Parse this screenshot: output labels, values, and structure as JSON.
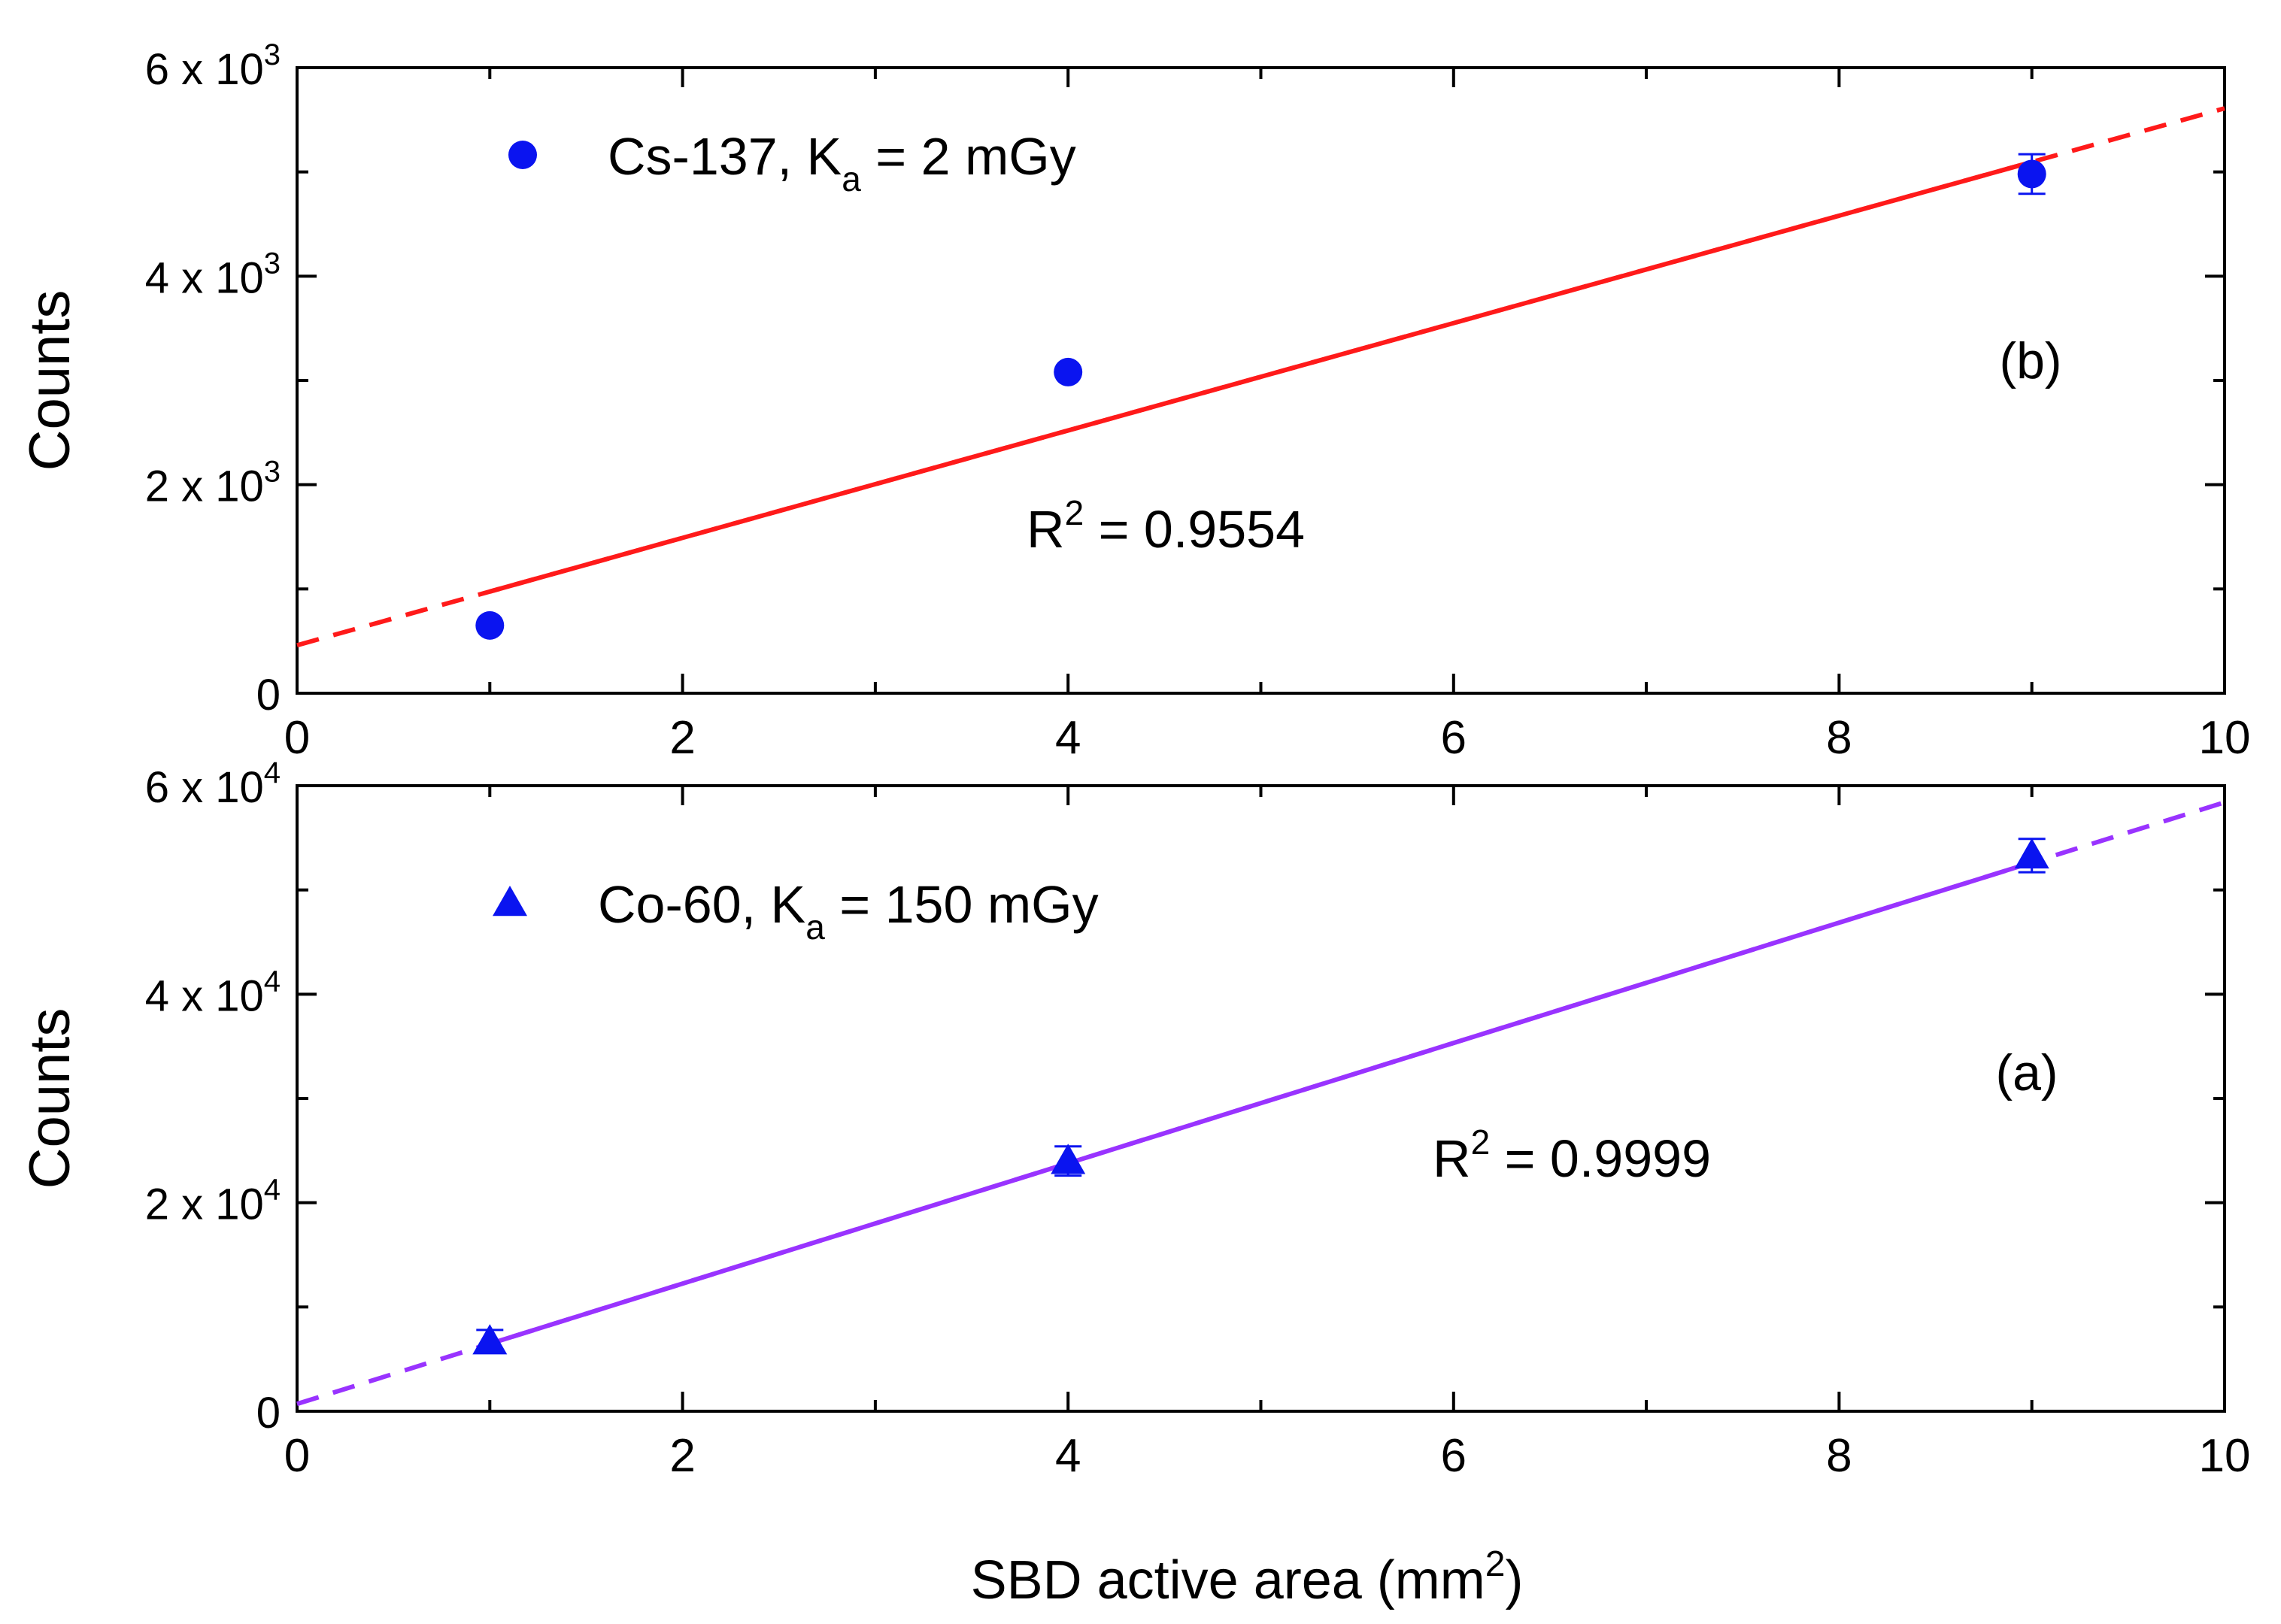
{
  "figure": {
    "shared_xlabel": "SBD active area (mm",
    "shared_xlabel_sup": "2",
    "shared_xlabel_end": ")"
  },
  "colors": {
    "marker": "#0a14f0",
    "fit_top": "#ff1a1a",
    "fit_bottom": "#9933ff",
    "axis": "#000000"
  },
  "chart_data": [
    {
      "id": "top",
      "type": "scatter",
      "panel_label": "(b)",
      "ylabel": "Counts",
      "xlim": [
        0,
        10
      ],
      "ylim": [
        0,
        6000
      ],
      "x_ticks": [
        0,
        2,
        4,
        6,
        8,
        10
      ],
      "x_tick_labels": [
        "0",
        "2",
        "4",
        "6",
        "8",
        "10"
      ],
      "y_ticks": [
        0,
        2000,
        4000,
        6000
      ],
      "y_tick_labels": [
        {
          "mant": "0",
          "exp": ""
        },
        {
          "mant": "2 x 10",
          "exp": "3"
        },
        {
          "mant": "4 x 10",
          "exp": "3"
        },
        {
          "mant": "6 x 10",
          "exp": "3"
        }
      ],
      "marker": "circle",
      "legend": {
        "text": "Cs-137, K",
        "sub": "a",
        "rest": " = 2 mGy"
      },
      "series": [
        {
          "name": "Cs-137, Ka = 2 mGy",
          "x": [
            1,
            4,
            9
          ],
          "y": [
            650,
            3080,
            4980
          ],
          "yerr": [
            0,
            0,
            190
          ]
        }
      ],
      "fit": {
        "slope": 515,
        "intercept": 460,
        "solid_range": [
          1,
          9
        ],
        "dashed_range": [
          0,
          10
        ]
      },
      "annotation": {
        "text": "R",
        "sup": "2",
        "rest": " = 0.9554"
      }
    },
    {
      "id": "bottom",
      "type": "scatter",
      "panel_label": "(a)",
      "ylabel": "Counts",
      "xlim": [
        0,
        10
      ],
      "ylim": [
        0,
        60000
      ],
      "x_ticks": [
        0,
        2,
        4,
        6,
        8,
        10
      ],
      "x_tick_labels": [
        "0",
        "2",
        "4",
        "6",
        "8",
        "10"
      ],
      "y_ticks": [
        0,
        20000,
        40000,
        60000
      ],
      "y_tick_labels": [
        {
          "mant": "0",
          "exp": ""
        },
        {
          "mant": "2 x 10",
          "exp": "4"
        },
        {
          "mant": "4 x 10",
          "exp": "4"
        },
        {
          "mant": "6 x 10",
          "exp": "4"
        }
      ],
      "marker": "triangle",
      "legend": {
        "text": "Co-60, K",
        "sub": "a",
        "rest": " = 150 mGy"
      },
      "series": [
        {
          "name": "Co-60, Ka = 150 mGy",
          "x": [
            1,
            4,
            9
          ],
          "y": [
            6700,
            24000,
            53300
          ],
          "yerr": [
            1100,
            1400,
            1600
          ]
        }
      ],
      "fit": {
        "slope": 5770,
        "intercept": 700,
        "solid_range": [
          1,
          9
        ],
        "dashed_range": [
          0,
          10
        ]
      },
      "annotation": {
        "text": "R",
        "sup": "2",
        "rest": " = 0.9999"
      }
    }
  ]
}
